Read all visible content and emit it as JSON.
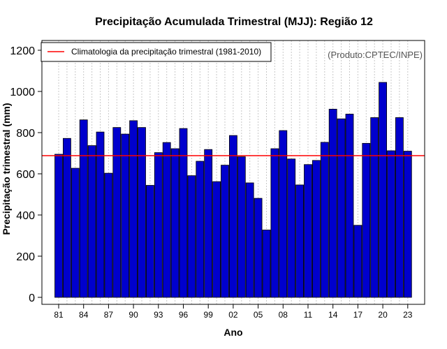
{
  "chart_data": {
    "type": "bar",
    "title": "Precipitação Acumulada Trimestral (MJJ): Região 12",
    "xlabel": "Ano",
    "ylabel": "Precipitação trimestral (mm)",
    "ylim": [
      0,
      1250
    ],
    "yticks": [
      0,
      200,
      400,
      600,
      800,
      1000,
      1200
    ],
    "years": [
      1981,
      1982,
      1983,
      1984,
      1985,
      1986,
      1987,
      1988,
      1989,
      1990,
      1991,
      1992,
      1993,
      1994,
      1995,
      1996,
      1997,
      1998,
      1999,
      2000,
      2001,
      2002,
      2003,
      2004,
      2005,
      2006,
      2007,
      2008,
      2009,
      2010,
      2011,
      2012,
      2013,
      2014,
      2015,
      2016,
      2017,
      2018,
      2019,
      2020,
      2021,
      2022,
      2023
    ],
    "xtick_labels": [
      "81",
      "84",
      "87",
      "90",
      "93",
      "96",
      "99",
      "02",
      "05",
      "08",
      "11",
      "14",
      "17",
      "20",
      "23"
    ],
    "xtick_years": [
      1981,
      1984,
      1987,
      1990,
      1993,
      1996,
      1999,
      2002,
      2005,
      2008,
      2011,
      2014,
      2017,
      2020,
      2023
    ],
    "values": [
      695,
      772,
      627,
      862,
      737,
      803,
      603,
      825,
      793,
      858,
      825,
      544,
      703,
      752,
      722,
      820,
      591,
      661,
      718,
      562,
      642,
      786,
      683,
      556,
      481,
      327,
      722,
      810,
      672,
      546,
      645,
      665,
      753,
      914,
      867,
      890,
      350,
      748,
      873,
      1044,
      712,
      873,
      710
    ],
    "climatology": 688,
    "legend": {
      "label": "Climatologia da precipitação trimestral (1981-2010)",
      "position": "top-left"
    },
    "credit": "(Produto:CPTEC/INPE)",
    "colors": {
      "bar_fill": "#0000CD",
      "bar_stroke": "#000000",
      "climatology_line": "#FF0000",
      "grid": "#C8C8C8"
    }
  }
}
